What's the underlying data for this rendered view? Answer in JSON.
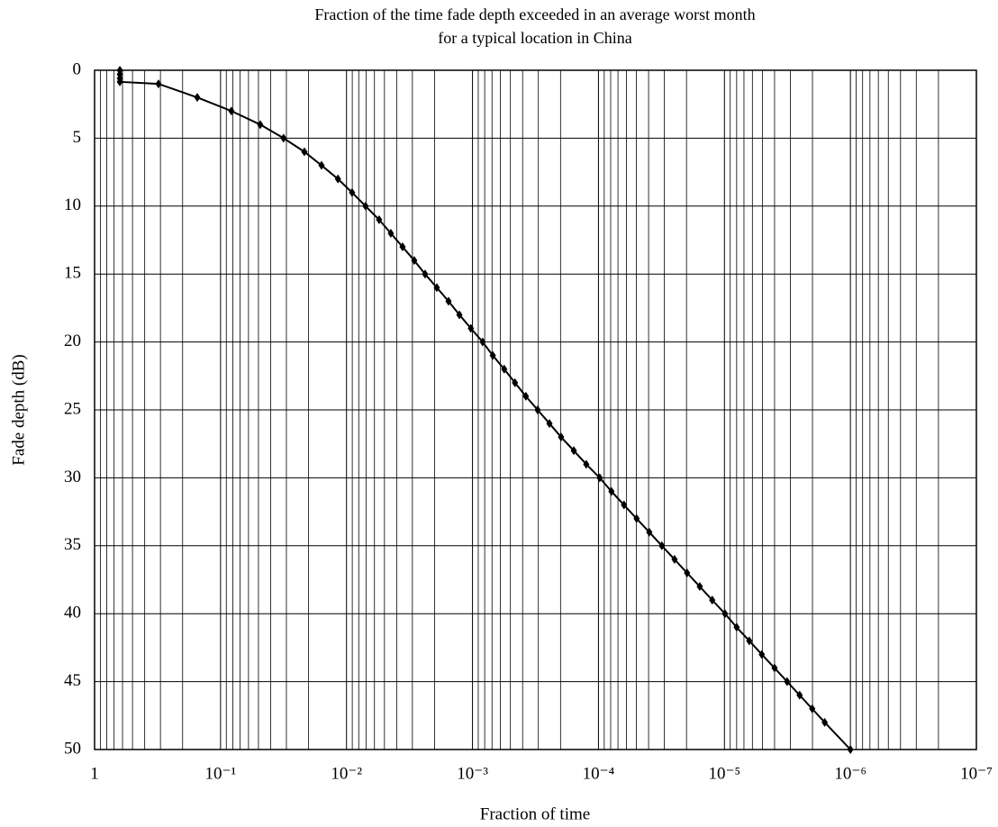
{
  "chart_data": {
    "type": "line",
    "title": [
      "Fraction of the time fade depth exceeded in an average worst month",
      "for a typical location in China"
    ],
    "x_label": "Fraction of time",
    "y_label": "Fade depth (dB)",
    "xscale": "log",
    "xlim": [
      1,
      1e-07
    ],
    "ylim": [
      50,
      0
    ],
    "xticks": [
      1,
      {
        "value": 0.1,
        "label": "10⁻¹"
      },
      {
        "value": 0.01,
        "label": "10⁻²"
      },
      {
        "value": 0.001,
        "label": "10⁻³"
      },
      {
        "value": 0.0001,
        "label": "10⁻⁴"
      },
      {
        "value": 1e-05,
        "label": "10⁻⁵"
      },
      {
        "value": 1e-06,
        "label": "10⁻⁶"
      },
      {
        "value": 1e-07,
        "label": "10⁻⁷"
      }
    ],
    "xminor": [
      0.9,
      0.8,
      0.7,
      0.6,
      0.5,
      0.4,
      0.3,
      0.2,
      0.09,
      0.08,
      0.07,
      0.06,
      0.05,
      0.04,
      0.03,
      0.02,
      0.009,
      0.008,
      0.007,
      0.006,
      0.005,
      0.004,
      0.003,
      0.002,
      0.0009,
      0.0008,
      0.0007,
      0.0006,
      0.0005,
      0.0004,
      0.0003,
      0.0002,
      9e-05,
      8e-05,
      7e-05,
      6e-05,
      5e-05,
      4e-05,
      3e-05,
      2e-05,
      9e-06,
      8e-06,
      7e-06,
      6e-06,
      5e-06,
      4e-06,
      3e-06,
      2e-06,
      9e-07,
      8e-07,
      7e-07,
      6e-07,
      5e-07,
      4e-07,
      3e-07,
      2e-07
    ],
    "yticks": [
      0,
      5,
      10,
      15,
      20,
      25,
      30,
      35,
      40,
      45,
      50
    ],
    "grid": true,
    "color": "#000000",
    "marker": "diamond",
    "x": [
      0.63,
      0.63,
      0.63,
      0.63,
      0.311,
      0.153,
      0.082,
      0.0484,
      0.0316,
      0.0216,
      0.0158,
      0.0117,
      0.00903,
      0.00706,
      0.00551,
      0.00445,
      0.00359,
      0.0029,
      0.00238,
      0.00192,
      0.00155,
      0.00127,
      0.00103,
      0.00083,
      0.00069,
      0.00056,
      0.00046,
      0.000377,
      0.000304,
      0.000245,
      0.000198,
      0.000157,
      0.000125,
      9.77e-05,
      7.89e-05,
      6.27e-05,
      4.98e-05,
      3.95e-05,
      3.14e-05,
      2.49e-05,
      1.98e-05,
      1.57e-05,
      1.25e-05,
      9.9e-06,
      8e-06,
      6.35e-06,
      5.05e-06,
      4e-06,
      3.18e-06,
      2.53e-06,
      2.01e-06,
      1.6e-06,
      1e-06
    ],
    "values": [
      0,
      0.3,
      0.6,
      0.85,
      1,
      2,
      3,
      4,
      5,
      6,
      7,
      8,
      9,
      10,
      11,
      12,
      13,
      14,
      15,
      16,
      17,
      18,
      19,
      20,
      21,
      22,
      23,
      24,
      25,
      26,
      27,
      28,
      29,
      30,
      31,
      32,
      33,
      34,
      35,
      36,
      37,
      38,
      39,
      40,
      41,
      42,
      43,
      44,
      45,
      46,
      47,
      48,
      50
    ]
  }
}
